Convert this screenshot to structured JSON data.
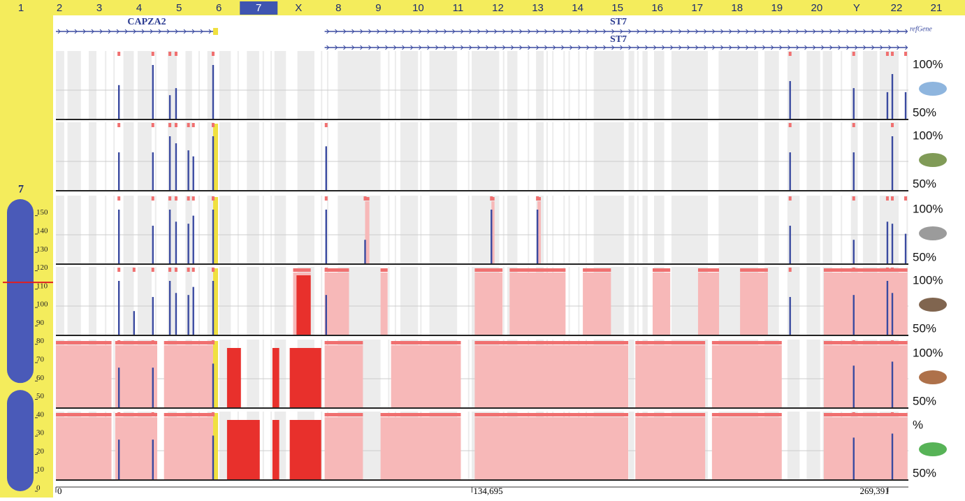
{
  "header": {
    "chromosomes": [
      "1",
      "2",
      "3",
      "4",
      "5",
      "6",
      "7",
      "X",
      "8",
      "9",
      "10",
      "11",
      "12",
      "13",
      "14",
      "15",
      "16",
      "17",
      "18",
      "19",
      "20",
      "Y",
      "22",
      "21"
    ],
    "selected": 6
  },
  "genes": {
    "track_label": "refGene",
    "items": [
      {
        "name": "CAPZA2",
        "start": 0,
        "end": 50900
      },
      {
        "name": "ST7",
        "start": 87000,
        "end": 275700
      },
      {
        "name": "ST7",
        "start": 87000,
        "end": 275700
      }
    ]
  },
  "ideogram": {
    "label": "7",
    "ylim": [
      0,
      159
    ],
    "ticks": [
      150,
      140,
      130,
      120,
      110,
      100,
      90,
      80,
      70,
      60,
      50,
      40,
      30,
      20,
      10,
      0
    ],
    "centromere": 57,
    "marker": 113.7
  },
  "axis": {
    "xlim": [
      0,
      276000
    ],
    "xticks": [
      0,
      {
        "value": 134695,
        "label": "134,695"
      },
      {
        "value": 269391,
        "label": "269,391"
      }
    ]
  },
  "colors": {
    "peak": "#3a4aa0",
    "region": "#f7b8b8",
    "highlight": "#e8302c"
  },
  "tracks": [
    {
      "top_label": "100%",
      "bottom_label": "50%",
      "ylim": [
        50,
        100
      ],
      "peaks": {
        "x": [
          20400,
          31400,
          36900,
          38900,
          50900,
          237700,
          258300,
          269200,
          270800,
          275100
        ],
        "values": [
          80,
          100,
          70,
          77,
          100,
          84,
          77,
          73,
          91,
          73
        ]
      },
      "regions": [],
      "highlight_regions": []
    },
    {
      "top_label": "100%",
      "bottom_label": "50%",
      "ylim": [
        50,
        100
      ],
      "peaks": {
        "x": [
          20400,
          31400,
          36900,
          38900,
          42900,
          44500,
          50900,
          87500,
          237700,
          258300,
          270800
        ],
        "values": [
          84,
          84,
          100,
          93,
          86,
          80,
          100,
          90,
          84,
          84,
          100
        ]
      },
      "regions": [],
      "highlight_regions": []
    },
    {
      "top_label": "100%",
      "bottom_label": "50%",
      "ylim": [
        50,
        100
      ],
      "peaks": {
        "x": [
          20400,
          31400,
          36900,
          38900,
          42900,
          44500,
          50900,
          87500,
          100100,
          141000,
          155900,
          237700,
          258300,
          269200,
          270800,
          275100
        ],
        "values": [
          100,
          84,
          100,
          88,
          86,
          94,
          100,
          100,
          70,
          100,
          100,
          84,
          70,
          88,
          86,
          76
        ]
      },
      "regions": [
        [
          100100,
          101500
        ],
        [
          141000,
          142000
        ],
        [
          155900,
          157000
        ]
      ],
      "highlight_regions": []
    },
    {
      "top_label": "100%",
      "bottom_label": "50%",
      "ylim": [
        50,
        100
      ],
      "peaks": {
        "x": [
          20400,
          25300,
          31400,
          36900,
          38900,
          42900,
          44500,
          50900,
          87500,
          237700,
          258300,
          269200,
          270800
        ],
        "values": [
          100,
          70,
          84,
          100,
          88,
          86,
          94,
          100,
          86,
          84,
          86,
          100,
          88
        ]
      },
      "regions": [
        [
          76800,
          82500
        ],
        [
          87000,
          94900
        ],
        [
          105100,
          107400
        ],
        [
          135600,
          144600
        ],
        [
          146900,
          165000
        ],
        [
          170600,
          179700
        ],
        [
          193200,
          198900
        ],
        [
          207900,
          214700
        ],
        [
          221500,
          230500
        ],
        [
          248600,
          275700
        ]
      ],
      "highlight_regions": [
        [
          77900,
          82500
        ]
      ]
    },
    {
      "top_label": "100%",
      "bottom_label": "50%",
      "ylim": [
        50,
        100
      ],
      "peaks": {
        "x": [
          20400,
          31400,
          50900,
          258300,
          270800
        ],
        "values": [
          86,
          86,
          90,
          88,
          92
        ]
      },
      "regions": [
        [
          0,
          18000
        ],
        [
          19200,
          32800
        ],
        [
          35000,
          50900
        ],
        [
          87000,
          99400
        ],
        [
          108500,
          131100
        ],
        [
          135600,
          185300
        ],
        [
          187600,
          210200
        ],
        [
          212400,
          235000
        ],
        [
          248600,
          275700
        ]
      ],
      "highlight_regions": [
        [
          55400,
          59900
        ],
        [
          70100,
          72300
        ],
        [
          75700,
          85900
        ]
      ]
    },
    {
      "top_label": "%",
      "bottom_label": "50%",
      "ylim": [
        50,
        100
      ],
      "peaks": {
        "x": [
          20400,
          31400,
          50900,
          258300,
          270800
        ],
        "values": [
          86,
          86,
          90,
          88,
          92
        ]
      },
      "regions": [
        [
          0,
          18000
        ],
        [
          19200,
          32800
        ],
        [
          35000,
          50900
        ],
        [
          87000,
          99400
        ],
        [
          105100,
          131100
        ],
        [
          135600,
          185300
        ],
        [
          187600,
          210200
        ],
        [
          212400,
          235000
        ],
        [
          248600,
          275700
        ]
      ],
      "highlight_regions": [
        [
          55400,
          66000
        ],
        [
          70100,
          72300
        ],
        [
          75700,
          85900
        ]
      ]
    }
  ]
}
